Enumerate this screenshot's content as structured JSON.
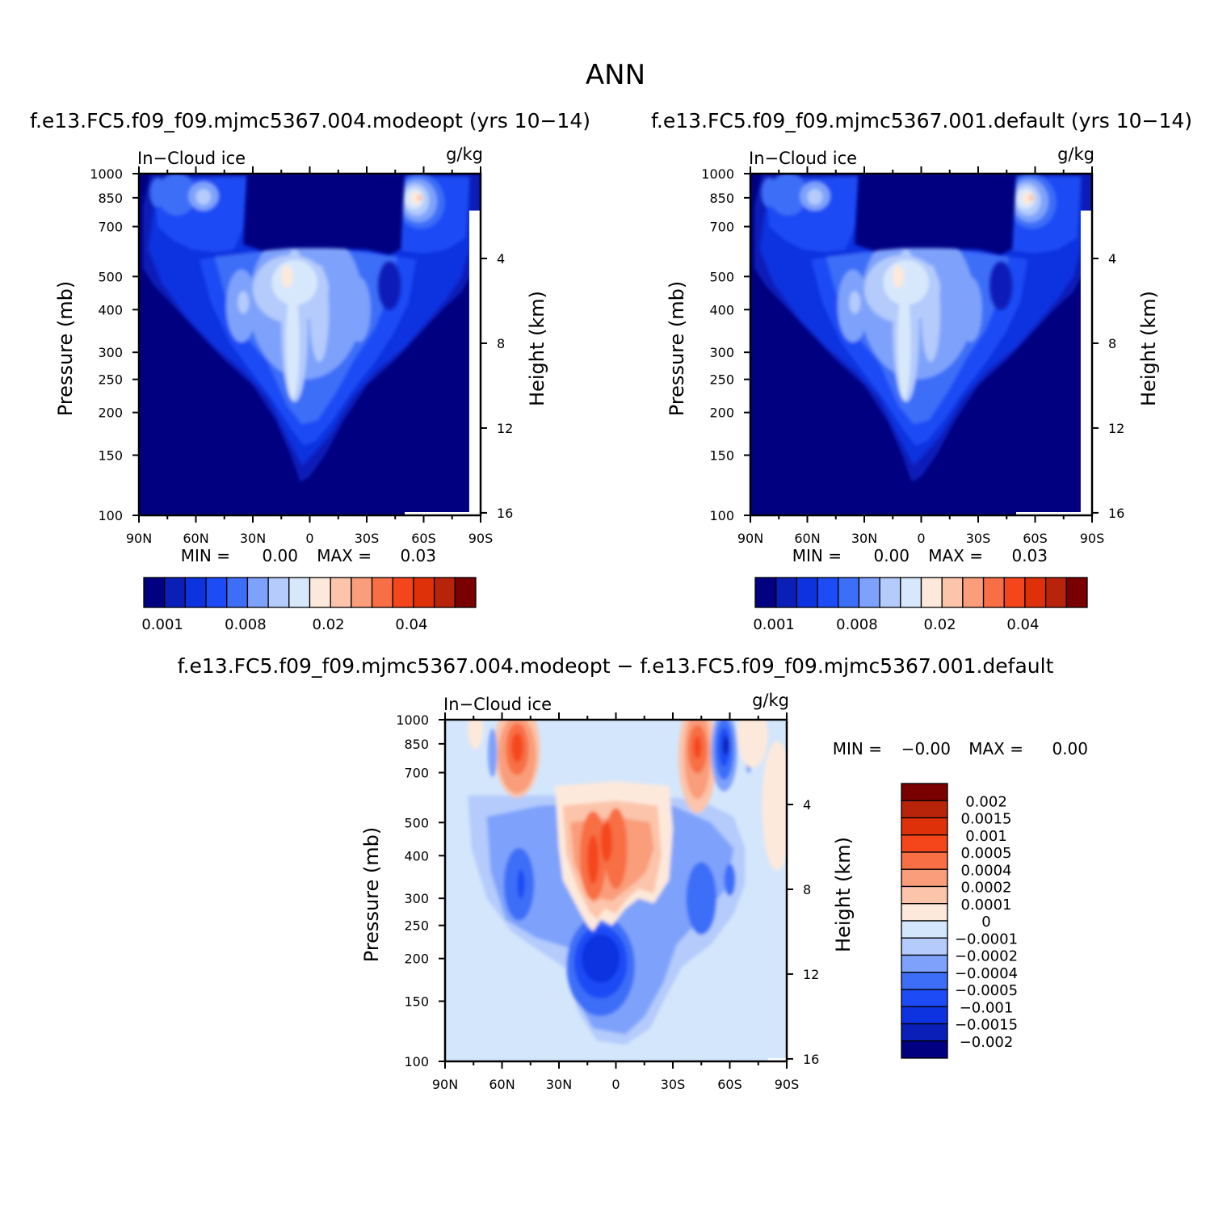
{
  "page_title": "ANN",
  "colors": {
    "scale": [
      "#000080",
      "#0a1fb8",
      "#0d33e0",
      "#1d4bf5",
      "#3c6ef8",
      "#7ea2fb",
      "#b4cbfc",
      "#d8e8fc",
      "#fde9db",
      "#fcc4aa",
      "#f99d7a",
      "#f86e45",
      "#f5461b",
      "#de310a",
      "#b8240a",
      "#7a0000"
    ],
    "diff_scale": [
      "#000080",
      "#0a1fb8",
      "#0d33e0",
      "#1d4bf5",
      "#3c6ef8",
      "#7ea2fb",
      "#b4cbfc",
      "#d4e6fc",
      "#fde9db",
      "#fcc4aa",
      "#f99d7a",
      "#f86e45",
      "#f5461b",
      "#de310a",
      "#b8240a",
      "#7a0000"
    ],
    "mask": "#ffffff"
  },
  "chart_data": [
    {
      "id": "panel-modeopt",
      "type": "heatmap",
      "title": "f.e13.FC5.f09_f09.mjmc5367.004.modeopt (yrs 10−14)",
      "variable_label": "In−Cloud ice",
      "units": "g/kg",
      "ylabel": "Pressure (mb)",
      "y2label": "Height (km)",
      "xlim": [
        90,
        -90
      ],
      "ylim": [
        1000,
        100
      ],
      "x_ticks": [
        "90N",
        "60N",
        "30N",
        "0",
        "30S",
        "60S",
        "90S"
      ],
      "y_ticks": [
        "100",
        "150",
        "200",
        "250",
        "300",
        "400",
        "500",
        "700",
        "850",
        "1000"
      ],
      "y2_ticks": [
        "16",
        "12",
        "8",
        "4"
      ],
      "min_label": "MIN =",
      "min_value": "0.00",
      "max_label": "MAX =",
      "max_value": "0.03",
      "colorbar_labels": [
        "0.001",
        "0.008",
        "0.02",
        "0.04"
      ],
      "contour_levels": [
        0.001,
        0.002,
        0.004,
        0.006,
        0.008,
        0.01,
        0.015,
        0.02,
        0.025,
        0.03,
        0.035,
        0.04,
        0.045,
        0.05,
        0.055
      ]
    },
    {
      "id": "panel-default",
      "type": "heatmap",
      "title": "f.e13.FC5.f09_f09.mjmc5367.001.default (yrs 10−14)",
      "variable_label": "In−Cloud ice",
      "units": "g/kg",
      "ylabel": "Pressure (mb)",
      "y2label": "Height (km)",
      "xlim": [
        90,
        -90
      ],
      "ylim": [
        1000,
        100
      ],
      "x_ticks": [
        "90N",
        "60N",
        "30N",
        "0",
        "30S",
        "60S",
        "90S"
      ],
      "y_ticks": [
        "100",
        "150",
        "200",
        "250",
        "300",
        "400",
        "500",
        "700",
        "850",
        "1000"
      ],
      "y2_ticks": [
        "16",
        "12",
        "8",
        "4"
      ],
      "min_label": "MIN =",
      "min_value": "0.00",
      "max_label": "MAX =",
      "max_value": "0.03",
      "colorbar_labels": [
        "0.001",
        "0.008",
        "0.02",
        "0.04"
      ],
      "contour_levels": [
        0.001,
        0.002,
        0.004,
        0.006,
        0.008,
        0.01,
        0.015,
        0.02,
        0.025,
        0.03,
        0.035,
        0.04,
        0.045,
        0.05,
        0.055
      ]
    },
    {
      "id": "panel-diff",
      "type": "heatmap",
      "title": "f.e13.FC5.f09_f09.mjmc5367.004.modeopt − f.e13.FC5.f09_f09.mjmc5367.001.default",
      "variable_label": "In−Cloud ice",
      "units": "g/kg",
      "ylabel": "Pressure (mb)",
      "y2label": "Height (km)",
      "xlim": [
        90,
        -90
      ],
      "ylim": [
        1000,
        100
      ],
      "x_ticks": [
        "90N",
        "60N",
        "30N",
        "0",
        "30S",
        "60S",
        "90S"
      ],
      "y_ticks": [
        "100",
        "150",
        "200",
        "250",
        "300",
        "400",
        "500",
        "700",
        "850",
        "1000"
      ],
      "y2_ticks": [
        "16",
        "12",
        "8",
        "4"
      ],
      "min_label": "MIN =",
      "min_value": "−0.00",
      "max_label": "MAX =",
      "max_value": "0.00",
      "colorbar_labels": [
        "0.002",
        "0.0015",
        "0.001",
        "0.0005",
        "0.0004",
        "0.0002",
        "0.0001",
        "0",
        "−0.0001",
        "−0.0002",
        "−0.0004",
        "−0.0005",
        "−0.001",
        "−0.0015",
        "−0.002"
      ],
      "contour_levels": [
        -0.002,
        -0.0015,
        -0.001,
        -0.0005,
        -0.0004,
        -0.0002,
        -0.0001,
        0,
        0.0001,
        0.0002,
        0.0004,
        0.0005,
        0.001,
        0.0015,
        0.002
      ]
    }
  ]
}
